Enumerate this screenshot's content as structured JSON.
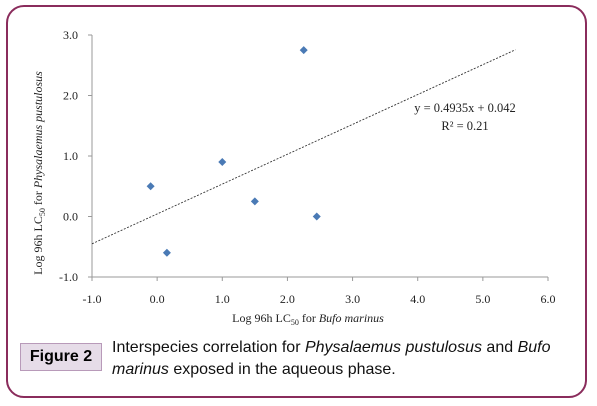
{
  "chart_data": {
    "type": "scatter",
    "points": [
      {
        "x": -0.1,
        "y": 0.5
      },
      {
        "x": 0.15,
        "y": -0.6
      },
      {
        "x": 1.0,
        "y": 0.9
      },
      {
        "x": 1.5,
        "y": 0.25
      },
      {
        "x": 2.25,
        "y": 2.75
      },
      {
        "x": 2.45,
        "y": 0.0
      }
    ],
    "trendline": {
      "type": "linear",
      "slope": 0.4935,
      "intercept": 0.042,
      "x_range": [
        -1.0,
        5.5
      ]
    },
    "equation_label": "y = 0.4935x + 0.042",
    "r2_label": "R² = 0.21",
    "xlim": [
      -1.0,
      6.0
    ],
    "ylim": [
      -1.0,
      3.0
    ],
    "x_ticks": [
      "-1.0",
      "0.0",
      "1.0",
      "2.0",
      "3.0",
      "4.0",
      "5.0",
      "6.0"
    ],
    "y_ticks": [
      "3.0",
      "2.0",
      "1.0",
      "0.0",
      "-1.0"
    ],
    "xlabel": {
      "prefix": "Log 96h LC",
      "sub": "50",
      "mid": " for ",
      "species": "Bufo marinus"
    },
    "ylabel": {
      "prefix": "Log 96h LC",
      "sub": "50",
      "mid": " for ",
      "species": "Physalaemus pustulosus"
    },
    "marker_color": "#4a7ab5"
  },
  "figure": {
    "label": "Figure 2",
    "caption_1": "Interspecies correlation for ",
    "caption_species_1": "Physalaemus pustulosus",
    "caption_2": " and ",
    "caption_species_2": "Bufo marinus",
    "caption_3": " exposed in the aqueous phase."
  }
}
